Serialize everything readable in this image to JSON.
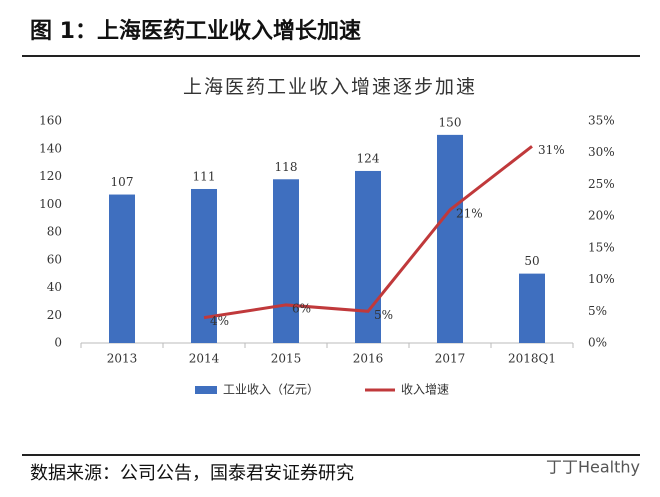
{
  "header": {
    "title": "图 1：上海医药工业收入增长加速"
  },
  "chart_data": {
    "type": "bar-line",
    "title": "上海医药工业收入增速逐步加速",
    "categories": [
      "2013",
      "2014",
      "2015",
      "2016",
      "2017",
      "2018Q1"
    ],
    "series": [
      {
        "name": "工业收入（亿元）",
        "color": "#3f6fbf",
        "type": "bar",
        "values": [
          107,
          111,
          118,
          124,
          150,
          50
        ]
      },
      {
        "name": "收入增速",
        "color": "#c0393b",
        "type": "line",
        "axis": "y2",
        "values": [
          null,
          4,
          6,
          5,
          21,
          31
        ],
        "value_labels": [
          null,
          "4%",
          "6%",
          "5%",
          "21%",
          "31%"
        ]
      }
    ],
    "ylim": [
      0,
      160
    ],
    "yticks": [
      0,
      20,
      40,
      60,
      80,
      100,
      120,
      140,
      160
    ],
    "y2lim": [
      0,
      35
    ],
    "y2ticks": [
      {
        "value": 0,
        "label": "0%"
      },
      {
        "value": 5,
        "label": "5%"
      },
      {
        "value": 10,
        "label": "10%"
      },
      {
        "value": 15,
        "label": "15%"
      },
      {
        "value": 20,
        "label": "20%"
      },
      {
        "value": 25,
        "label": "25%"
      },
      {
        "value": 30,
        "label": "30%"
      },
      {
        "value": 35,
        "label": "35%"
      }
    ],
    "grid": false,
    "legend": "bottom"
  },
  "source": "数据来源：公司公告，国泰君安证券研究",
  "watermark": "丁丁Healthy"
}
